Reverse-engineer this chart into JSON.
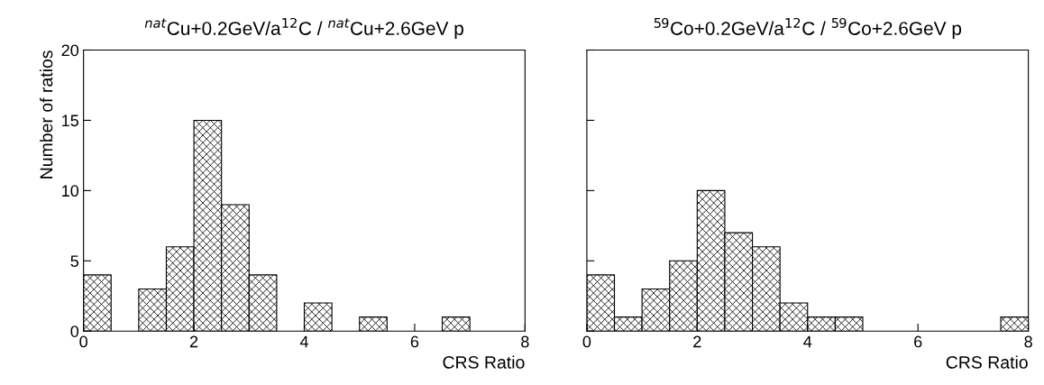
{
  "chart_data": [
    {
      "type": "histogram",
      "title": "$^{nat}$Cu+0.2GeV/a$^{12}$C / $^{nat}$Cu+2.6GeV p",
      "xlabel": "CRS Ratio",
      "ylabel": "Number of ratios",
      "color": "#000000",
      "bins": [
        0,
        0.5,
        1,
        1.5,
        2,
        2.5,
        3,
        3.5,
        4,
        4.5,
        5,
        5.5,
        6,
        6.5,
        7,
        7.5,
        8
      ],
      "values": [
        4,
        0,
        3,
        6,
        15,
        9,
        4,
        0,
        2,
        0,
        1,
        0,
        0,
        1,
        0,
        0
      ],
      "xlim": [
        0,
        8
      ],
      "xticks": [
        0,
        2,
        4,
        6,
        8
      ],
      "ylim": [
        0,
        20
      ],
      "yticks": [
        0,
        5,
        10,
        15,
        20
      ]
    },
    {
      "type": "histogram",
      "title": "$^{59}$Co+0.2GeV/a$^{12}$C / $^{59}$Co+2.6GeV p",
      "xlabel": "CRS Ratio",
      "color": "#000000",
      "bins": [
        0,
        0.5,
        1,
        1.5,
        2,
        2.5,
        3,
        3.5,
        4,
        4.5,
        5,
        5.5,
        6,
        6.5,
        7,
        7.5,
        8
      ],
      "values": [
        4,
        1,
        3,
        5,
        10,
        7,
        6,
        2,
        1,
        1,
        0,
        0,
        0,
        0,
        0,
        1
      ],
      "xlim": [
        0,
        8
      ],
      "xticks": [
        0,
        2,
        4,
        6,
        8
      ],
      "ylim": [
        0,
        20
      ],
      "yticks": [
        0,
        5,
        10,
        15,
        20
      ],
      "tick_labels": "x"
    }
  ]
}
